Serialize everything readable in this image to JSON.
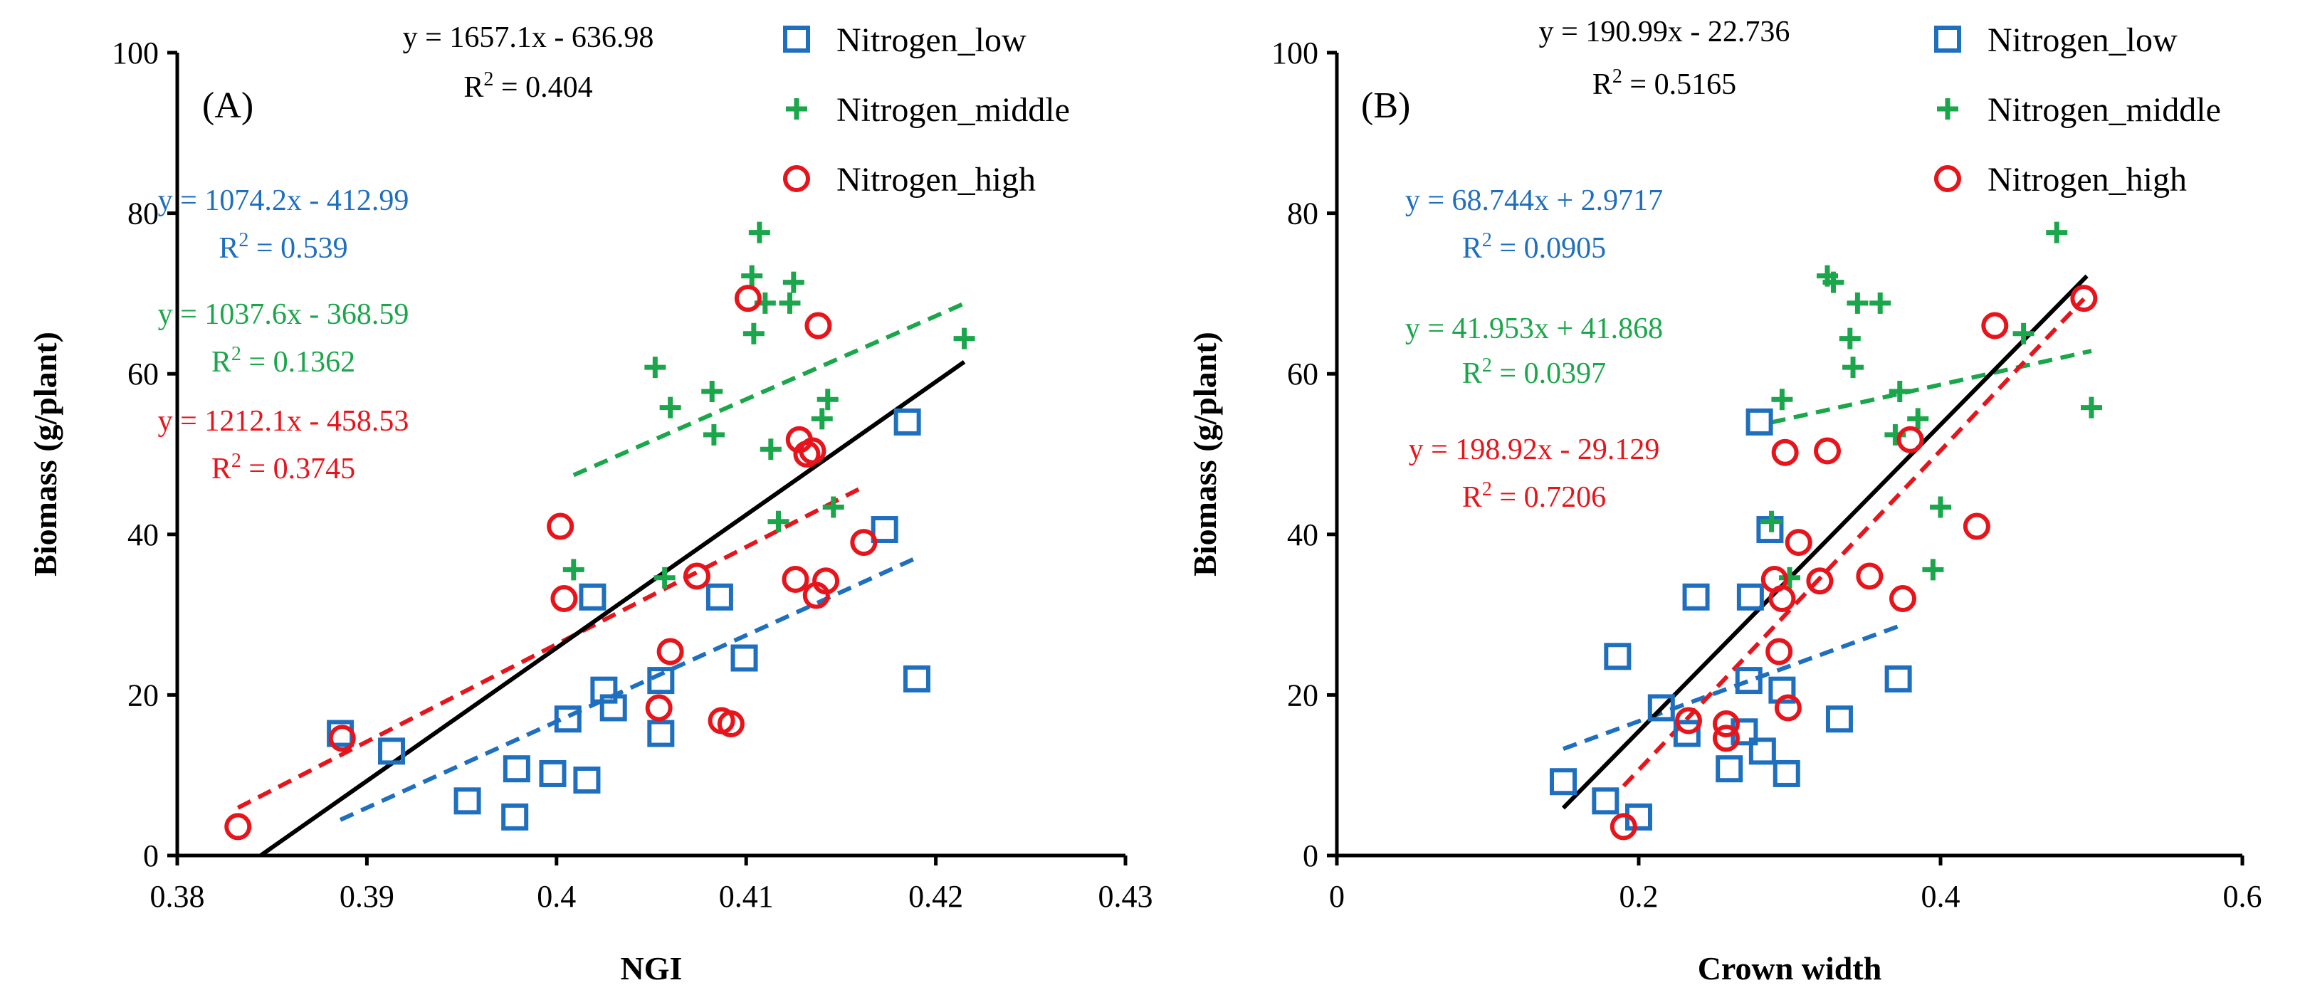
{
  "chart_data": [
    {
      "type": "scatter",
      "panel_label": "(A)",
      "xlabel": "NGI",
      "ylabel": "Biomass (g/plant)",
      "xlim": [
        0.38,
        0.43
      ],
      "ylim": [
        0,
        100
      ],
      "x_ticks": [
        0.38,
        0.39,
        0.4,
        0.41,
        0.42,
        0.43
      ],
      "x_tick_labels": [
        "0.38",
        "0.39",
        "0.4",
        "0.41",
        "0.42",
        "0.43"
      ],
      "y_ticks": [
        0,
        20,
        40,
        60,
        80,
        100
      ],
      "y_tick_labels": [
        "0",
        "20",
        "40",
        "60",
        "80",
        "100"
      ],
      "legend": [
        {
          "name": "Nitrogen_low",
          "marker": "square",
          "color": "#1f6fbf"
        },
        {
          "name": "Nitrogen_middle",
          "marker": "plus",
          "color": "#1aa64a"
        },
        {
          "name": "Nitrogen_high",
          "marker": "circle",
          "color": "#e8141b"
        }
      ],
      "overall_fit": {
        "equation": "y = 1657.1x - 636.98",
        "r2_prefix": "R",
        "r2_sup": "2",
        "r2_value": " = 0.404",
        "slope": 1657.1,
        "intercept": -636.98,
        "x_range": [
          0.3844,
          0.4215
        ],
        "color": "#000000"
      },
      "series": [
        {
          "name": "Nitrogen_low",
          "color": "#1f6fbf",
          "marker": "square",
          "points": [
            [
              0.3886,
              15.2
            ],
            [
              0.3913,
              13.0
            ],
            [
              0.3953,
              6.8
            ],
            [
              0.3978,
              4.8
            ],
            [
              0.3979,
              10.8
            ],
            [
              0.3998,
              10.2
            ],
            [
              0.4006,
              17.0
            ],
            [
              0.4016,
              9.4
            ],
            [
              0.4019,
              32.2
            ],
            [
              0.4025,
              20.6
            ],
            [
              0.403,
              18.4
            ],
            [
              0.4055,
              21.8
            ],
            [
              0.4055,
              15.2
            ],
            [
              0.4086,
              32.2
            ],
            [
              0.4099,
              24.6
            ],
            [
              0.4173,
              40.6
            ],
            [
              0.4185,
              54.0
            ],
            [
              0.419,
              22.0
            ]
          ],
          "fit": {
            "equation": "y = 1074.2x - 412.99",
            "r2_prefix": "R",
            "r2_sup": "2",
            "r2_value": " = 0.539",
            "slope": 1074.2,
            "intercept": -412.99,
            "x_range": [
              0.3886,
              0.419
            ]
          }
        },
        {
          "name": "Nitrogen_middle",
          "color": "#1aa64a",
          "marker": "plus",
          "points": [
            [
              0.4009,
              35.6
            ],
            [
              0.4052,
              60.8
            ],
            [
              0.4057,
              34.6
            ],
            [
              0.406,
              55.8
            ],
            [
              0.4082,
              57.8
            ],
            [
              0.4083,
              52.4
            ],
            [
              0.4103,
              72.2
            ],
            [
              0.4104,
              65.0
            ],
            [
              0.4107,
              77.6
            ],
            [
              0.411,
              68.8
            ],
            [
              0.4113,
              50.6
            ],
            [
              0.4117,
              41.6
            ],
            [
              0.4123,
              68.8
            ],
            [
              0.4125,
              71.4
            ],
            [
              0.414,
              54.4
            ],
            [
              0.4143,
              56.8
            ],
            [
              0.4146,
              43.4
            ],
            [
              0.4215,
              64.4
            ]
          ],
          "fit": {
            "equation": "y = 1037.6x - 368.59",
            "r2_prefix": "R",
            "r2_sup": "2",
            "r2_value": " = 0.1362",
            "slope": 1037.6,
            "intercept": -368.59,
            "x_range": [
              0.4009,
              0.4215
            ]
          }
        },
        {
          "name": "Nitrogen_high",
          "color": "#e8141b",
          "marker": "circle",
          "points": [
            [
              0.3832,
              3.6
            ],
            [
              0.3887,
              14.6
            ],
            [
              0.4002,
              41.0
            ],
            [
              0.4004,
              32.0
            ],
            [
              0.4074,
              34.8
            ],
            [
              0.4054,
              18.4
            ],
            [
              0.406,
              25.4
            ],
            [
              0.4087,
              16.8
            ],
            [
              0.4092,
              16.4
            ],
            [
              0.4101,
              69.4
            ],
            [
              0.4126,
              34.4
            ],
            [
              0.4128,
              51.8
            ],
            [
              0.4132,
              50.0
            ],
            [
              0.4135,
              50.4
            ],
            [
              0.4137,
              32.4
            ],
            [
              0.4138,
              66.0
            ],
            [
              0.4142,
              34.2
            ],
            [
              0.4162,
              39.0
            ]
          ],
          "fit": {
            "equation": "y = 1212.1x - 458.53",
            "r2_prefix": "R",
            "r2_sup": "2",
            "r2_value": " = 0.3745",
            "slope": 1212.1,
            "intercept": -458.53,
            "x_range": [
              0.3832,
              0.4162
            ]
          }
        }
      ]
    },
    {
      "type": "scatter",
      "panel_label": "(B)",
      "xlabel": "Crown width",
      "ylabel": "Biomass (g/plant)",
      "xlim": [
        0,
        0.6
      ],
      "ylim": [
        0,
        100
      ],
      "x_ticks": [
        0,
        0.2,
        0.4,
        0.6
      ],
      "x_tick_labels": [
        "0",
        "0.2",
        "0.4",
        "0.6"
      ],
      "y_ticks": [
        0,
        20,
        40,
        60,
        80,
        100
      ],
      "y_tick_labels": [
        "0",
        "20",
        "40",
        "60",
        "80",
        "100"
      ],
      "legend": [
        {
          "name": "Nitrogen_low",
          "marker": "square",
          "color": "#1f6fbf"
        },
        {
          "name": "Nitrogen_middle",
          "marker": "plus",
          "color": "#1aa64a"
        },
        {
          "name": "Nitrogen_high",
          "marker": "circle",
          "color": "#e8141b"
        }
      ],
      "overall_fit": {
        "equation": "y = 190.99x - 22.736",
        "r2_prefix": "R",
        "r2_sup": "2",
        "r2_value": " = 0.5165",
        "slope": 190.99,
        "intercept": -22.736,
        "x_range": [
          0.15,
          0.497
        ],
        "color": "#000000"
      },
      "series": [
        {
          "name": "Nitrogen_low",
          "color": "#1f6fbf",
          "marker": "square",
          "points": [
            [
              0.15,
              9.2
            ],
            [
              0.178,
              6.8
            ],
            [
              0.186,
              24.8
            ],
            [
              0.2,
              4.8
            ],
            [
              0.215,
              18.4
            ],
            [
              0.232,
              15.2
            ],
            [
              0.238,
              32.2
            ],
            [
              0.26,
              10.8
            ],
            [
              0.27,
              15.4
            ],
            [
              0.273,
              21.8
            ],
            [
              0.274,
              32.2
            ],
            [
              0.28,
              54.0
            ],
            [
              0.282,
              13.0
            ],
            [
              0.287,
              40.6
            ],
            [
              0.295,
              20.6
            ],
            [
              0.298,
              10.2
            ],
            [
              0.333,
              17.0
            ],
            [
              0.372,
              22.0
            ]
          ],
          "fit": {
            "equation": "y = 68.744x + 2.9717",
            "r2_prefix": "R",
            "r2_sup": "2",
            "r2_value": " = 0.0905",
            "slope": 68.744,
            "intercept": 2.9717,
            "x_range": [
              0.15,
              0.372
            ]
          }
        },
        {
          "name": "Nitrogen_middle",
          "color": "#1aa64a",
          "marker": "plus",
          "points": [
            [
              0.288,
              41.6
            ],
            [
              0.295,
              56.8
            ],
            [
              0.3,
              34.6
            ],
            [
              0.325,
              72.2
            ],
            [
              0.329,
              71.4
            ],
            [
              0.34,
              64.4
            ],
            [
              0.342,
              60.8
            ],
            [
              0.345,
              68.8
            ],
            [
              0.36,
              68.8
            ],
            [
              0.37,
              52.4
            ],
            [
              0.373,
              57.8
            ],
            [
              0.385,
              54.4
            ],
            [
              0.395,
              35.6
            ],
            [
              0.4,
              43.4
            ],
            [
              0.455,
              65.0
            ],
            [
              0.477,
              77.6
            ],
            [
              0.5,
              55.8
            ]
          ],
          "fit": {
            "equation": "y = 41.953x + 41.868",
            "r2_prefix": "R",
            "r2_sup": "2",
            "r2_value": " = 0.0397",
            "slope": 41.953,
            "intercept": 41.868,
            "x_range": [
              0.288,
              0.5
            ]
          }
        },
        {
          "name": "Nitrogen_high",
          "color": "#e8141b",
          "marker": "circle",
          "points": [
            [
              0.19,
              3.6
            ],
            [
              0.233,
              16.8
            ],
            [
              0.258,
              16.4
            ],
            [
              0.258,
              14.6
            ],
            [
              0.29,
              34.4
            ],
            [
              0.293,
              25.4
            ],
            [
              0.295,
              32.0
            ],
            [
              0.297,
              50.2
            ],
            [
              0.299,
              18.4
            ],
            [
              0.306,
              39.0
            ],
            [
              0.32,
              34.2
            ],
            [
              0.325,
              50.4
            ],
            [
              0.353,
              34.8
            ],
            [
              0.375,
              32.0
            ],
            [
              0.38,
              51.8
            ],
            [
              0.424,
              41.0
            ],
            [
              0.436,
              66.0
            ],
            [
              0.495,
              69.4
            ]
          ],
          "fit": {
            "equation": "y = 198.92x - 29.129",
            "r2_prefix": "R",
            "r2_sup": "2",
            "r2_value": " = 0.7206",
            "slope": 198.92,
            "intercept": -29.129,
            "x_range": [
              0.19,
              0.495
            ]
          }
        }
      ]
    }
  ]
}
